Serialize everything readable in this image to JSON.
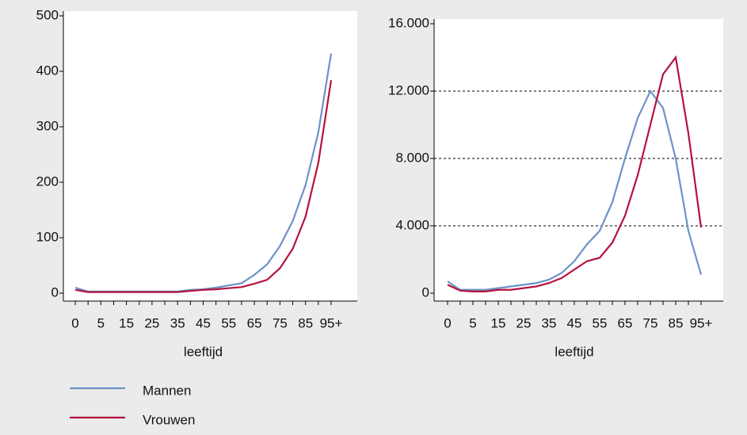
{
  "chart_data": [
    {
      "type": "line",
      "x_label": "leeftijd",
      "categories": [
        "0",
        null,
        "5",
        null,
        "15",
        null,
        "25",
        null,
        "35",
        null,
        "45",
        null,
        "55",
        null,
        "65",
        null,
        "75",
        null,
        "85",
        null,
        "95+"
      ],
      "ylim": [
        0,
        500
      ],
      "yticks": [
        0,
        100,
        200,
        300,
        400,
        500
      ],
      "grid": false,
      "series": [
        {
          "name": "Mannen",
          "color": "#6b93c8",
          "values": [
            10,
            3,
            3,
            3,
            3,
            3,
            3,
            3,
            3,
            6,
            7,
            10,
            14,
            18,
            33,
            52,
            85,
            130,
            195,
            290,
            432
          ]
        },
        {
          "name": "Vrouwen",
          "color": "#b5123f",
          "values": [
            6,
            2,
            2,
            2,
            2,
            2,
            2,
            2,
            2,
            4,
            6,
            7,
            9,
            11,
            17,
            24,
            45,
            80,
            138,
            235,
            384
          ]
        }
      ]
    },
    {
      "type": "line",
      "x_label": "leeftijd",
      "categories": [
        "0",
        null,
        "5",
        null,
        "15",
        null,
        "25",
        null,
        "35",
        null,
        "45",
        null,
        "55",
        null,
        "65",
        null,
        "75",
        null,
        "85",
        null,
        "95+"
      ],
      "ylim": [
        0,
        16000
      ],
      "yticks": [
        0,
        {
          "value": 4000,
          "label": "4.000"
        },
        {
          "value": 8000,
          "label": "8.000"
        },
        {
          "value": 12000,
          "label": "12.000"
        },
        {
          "value": 16000,
          "label": "16.000"
        }
      ],
      "grid": true,
      "series": [
        {
          "color": "#6b93c8",
          "values": [
            700,
            200,
            200,
            200,
            300,
            400,
            500,
            600,
            800,
            1200,
            1900,
            2900,
            3700,
            5400,
            8000,
            10400,
            12000,
            11000,
            8000,
            3700,
            1100
          ]
        },
        {
          "color": "#b5123f",
          "values": [
            500,
            150,
            100,
            100,
            200,
            200,
            300,
            400,
            600,
            900,
            1400,
            1900,
            2100,
            3000,
            4600,
            7000,
            10000,
            13000,
            14000,
            9500,
            3900
          ]
        }
      ]
    }
  ]
}
